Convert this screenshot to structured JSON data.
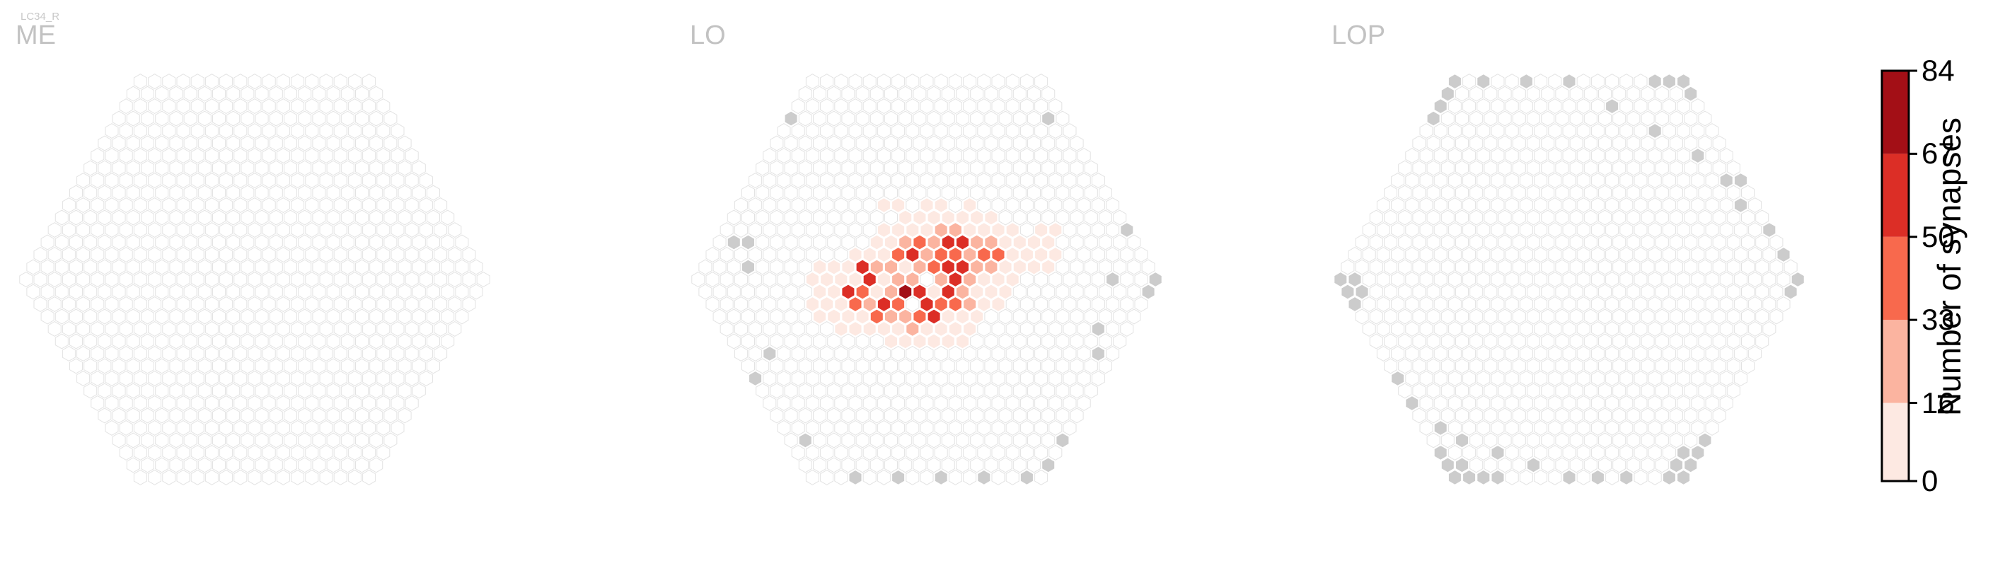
{
  "figure": {
    "cell_type_label": "LC34_R"
  },
  "chart_data": {
    "type": "heatmap",
    "panels": [
      {
        "id": "me",
        "title": "ME",
        "grid_radius": 16,
        "hex_rows": 33,
        "hex_cols": 33,
        "synapse_cells": [],
        "missing_cells": []
      },
      {
        "id": "lo",
        "title": "LO",
        "grid_radius": 16,
        "hex_rows": 33,
        "hex_cols": 33,
        "synapse_cells": [
          [
            0,
            1,
            9
          ],
          [
            1,
            0,
            21
          ],
          [
            -1,
            0,
            24
          ],
          [
            0,
            -1,
            31
          ],
          [
            1,
            -1,
            41
          ],
          [
            -1,
            1,
            55
          ],
          [
            2,
            0,
            61
          ],
          [
            2,
            -2,
            48
          ],
          [
            0,
            2,
            45
          ],
          [
            -2,
            1,
            72
          ],
          [
            1,
            1,
            59
          ],
          [
            1,
            2,
            38
          ],
          [
            -1,
            2,
            66
          ],
          [
            -2,
            0,
            28
          ],
          [
            2,
            -1,
            52
          ],
          [
            -3,
            2,
            44
          ],
          [
            -3,
            1,
            18
          ],
          [
            3,
            -2,
            35
          ],
          [
            3,
            -1,
            64
          ],
          [
            0,
            3,
            12
          ],
          [
            -1,
            3,
            58
          ],
          [
            -2,
            3,
            47
          ],
          [
            -3,
            3,
            29
          ],
          [
            -4,
            2,
            55
          ],
          [
            -4,
            1,
            13
          ],
          [
            -2,
            -1,
            25
          ],
          [
            -3,
            0,
            8
          ],
          [
            -4,
            0,
            60
          ],
          [
            -5,
            1,
            42
          ],
          [
            -5,
            2,
            21
          ],
          [
            -1,
            -1,
            9
          ],
          [
            -2,
            -2,
            15
          ],
          [
            -3,
            -1,
            30
          ],
          [
            -4,
            -1,
            51
          ],
          [
            -5,
            0,
            10
          ],
          [
            -6,
            1,
            56
          ],
          [
            -6,
            2,
            38
          ],
          [
            -4,
            3,
            24
          ],
          [
            -5,
            3,
            40
          ],
          [
            -2,
            4,
            14
          ],
          [
            -3,
            4,
            22
          ],
          [
            1,
            -2,
            26
          ],
          [
            0,
            -2,
            62
          ],
          [
            -1,
            -2,
            34
          ],
          [
            2,
            -3,
            18
          ],
          [
            1,
            -3,
            44
          ],
          [
            3,
            -3,
            60
          ],
          [
            4,
            -3,
            53
          ],
          [
            3,
            -4,
            27
          ],
          [
            4,
            -4,
            31
          ],
          [
            5,
            -4,
            12
          ],
          [
            5,
            -3,
            24
          ],
          [
            6,
            -4,
            9
          ],
          [
            4,
            -2,
            33
          ],
          [
            5,
            -2,
            46
          ],
          [
            6,
            -3,
            20
          ],
          [
            4,
            -1,
            22
          ],
          [
            5,
            -1,
            19
          ],
          [
            6,
            -2,
            36
          ],
          [
            3,
            0,
            30
          ],
          [
            4,
            0,
            16
          ],
          [
            1,
            3,
            14
          ],
          [
            2,
            2,
            25
          ],
          [
            3,
            1,
            11
          ],
          [
            0,
            4,
            10
          ],
          [
            -1,
            4,
            8
          ],
          [
            2,
            1,
            21
          ],
          [
            -7,
            2,
            13
          ],
          [
            -7,
            3,
            9
          ],
          [
            -6,
            3,
            12
          ],
          [
            -8,
            4,
            5
          ],
          [
            -7,
            4,
            6
          ],
          [
            -6,
            4,
            8
          ],
          [
            -5,
            4,
            11
          ],
          [
            -4,
            4,
            7
          ],
          [
            -9,
            3,
            4
          ],
          [
            -9,
            2,
            5
          ],
          [
            -8,
            2,
            6
          ],
          [
            -8,
            1,
            9
          ],
          [
            -7,
            1,
            14
          ],
          [
            -8,
            3,
            8
          ],
          [
            -6,
            0,
            11
          ],
          [
            -7,
            0,
            7
          ],
          [
            -5,
            -1,
            8
          ],
          [
            -4,
            -2,
            9
          ],
          [
            -3,
            -2,
            14
          ],
          [
            -2,
            -3,
            8
          ],
          [
            -1,
            -3,
            11
          ],
          [
            0,
            -3,
            18
          ],
          [
            -1,
            -4,
            6
          ],
          [
            0,
            -4,
            9
          ],
          [
            1,
            -4,
            10
          ],
          [
            2,
            -4,
            13
          ],
          [
            1,
            -5,
            6
          ],
          [
            2,
            -5,
            8
          ],
          [
            3,
            -5,
            9
          ],
          [
            4,
            -5,
            7
          ],
          [
            5,
            -5,
            6
          ],
          [
            6,
            -5,
            5
          ],
          [
            6,
            -6,
            4
          ],
          [
            7,
            -5,
            4
          ],
          [
            7,
            -4,
            6
          ],
          [
            7,
            -3,
            8
          ],
          [
            8,
            -4,
            4
          ],
          [
            8,
            -3,
            6
          ],
          [
            6,
            -1,
            10
          ],
          [
            7,
            -2,
            12
          ],
          [
            8,
            -2,
            7
          ],
          [
            9,
            -3,
            5
          ],
          [
            9,
            -2,
            6
          ],
          [
            5,
            0,
            8
          ],
          [
            6,
            0,
            7
          ],
          [
            7,
            -1,
            5
          ],
          [
            8,
            -1,
            4
          ],
          [
            4,
            1,
            6
          ],
          [
            5,
            1,
            5
          ],
          [
            3,
            2,
            9
          ],
          [
            4,
            2,
            4
          ],
          [
            1,
            4,
            5
          ],
          [
            2,
            3,
            8
          ],
          [
            -2,
            5,
            7
          ],
          [
            -3,
            5,
            6
          ],
          [
            -1,
            5,
            5
          ],
          [
            0,
            5,
            4
          ],
          [
            -5,
            5,
            4
          ],
          [
            -4,
            5,
            5
          ],
          [
            -7,
            -1,
            4
          ],
          [
            -8,
            0,
            5
          ],
          [
            -6,
            -1,
            6
          ],
          [
            0,
            -6,
            5
          ],
          [
            1,
            -6,
            4
          ],
          [
            3,
            -6,
            5
          ],
          [
            4,
            -6,
            4
          ],
          [
            10,
            -4,
            3
          ],
          [
            10,
            -3,
            4
          ],
          [
            11,
            -4,
            3
          ],
          [
            9,
            -1,
            3
          ],
          [
            10,
            -2,
            3
          ]
        ],
        "missing_cells": [
          [
            16,
            0
          ],
          [
            15,
            1
          ],
          [
            -12,
            -3
          ],
          [
            -11,
            -3
          ],
          [
            -12,
            -1
          ],
          [
            -14,
            6
          ],
          [
            -16,
            8
          ],
          [
            -15,
            13
          ],
          [
            -13,
            16
          ],
          [
            -10,
            16
          ],
          [
            -7,
            16
          ],
          [
            -4,
            16
          ],
          [
            -1,
            16
          ],
          [
            1,
            15
          ],
          [
            3,
            13
          ],
          [
            9,
            6
          ],
          [
            10,
            4
          ],
          [
            13,
            0
          ],
          [
            16,
            -4
          ],
          [
            15,
            -13
          ],
          [
            -3,
            -13
          ]
        ]
      },
      {
        "id": "lop",
        "title": "LOP",
        "grid_radius": 16,
        "hex_rows": 33,
        "hex_cols": 33,
        "synapse_cells": [],
        "missing_cells": [
          [
            16,
            0
          ],
          [
            15,
            1
          ],
          [
            -16,
            16
          ],
          [
            -15,
            16
          ],
          [
            -14,
            16
          ],
          [
            -16,
            15
          ],
          [
            -15,
            15
          ],
          [
            -16,
            14
          ],
          [
            -13,
            16
          ],
          [
            16,
            -16
          ],
          [
            15,
            -16
          ],
          [
            16,
            -15
          ],
          [
            14,
            -16
          ],
          [
            -16,
            0
          ],
          [
            -15,
            0
          ],
          [
            -16,
            1
          ],
          [
            -15,
            1
          ],
          [
            -16,
            2
          ],
          [
            0,
            16
          ],
          [
            1,
            15
          ],
          [
            0,
            15
          ],
          [
            1,
            14
          ],
          [
            2,
            14
          ],
          [
            3,
            13
          ],
          [
            0,
            -16
          ],
          [
            -1,
            -15
          ],
          [
            -2,
            -14
          ],
          [
            -3,
            -13
          ],
          [
            -16,
            8
          ],
          [
            -16,
            10
          ],
          [
            -15,
            12
          ],
          [
            -14,
            13
          ],
          [
            -12,
            14
          ],
          [
            -10,
            15
          ],
          [
            -8,
            16
          ],
          [
            -6,
            16
          ],
          [
            -4,
            16
          ],
          [
            -1,
            16
          ],
          [
            16,
            -2
          ],
          [
            16,
            -4
          ],
          [
            15,
            -8
          ],
          [
            14,
            -10
          ],
          [
            12,
            -12
          ],
          [
            10,
            -14
          ],
          [
            8,
            -16
          ],
          [
            5,
            -16
          ],
          [
            2,
            -16
          ],
          [
            16,
            -8
          ],
          [
            15,
            -6
          ]
        ]
      }
    ],
    "colorbar": {
      "title": "Number of synapses",
      "ticks": [
        0,
        16,
        33,
        50,
        67,
        84
      ],
      "range": [
        0,
        84
      ],
      "colors": [
        "#fde9e2",
        "#fbb4a0",
        "#f8694d",
        "#dc2e26",
        "#a30f16"
      ]
    },
    "missing_color": "#cccccc",
    "empty_stroke": "#e3e3e3"
  }
}
